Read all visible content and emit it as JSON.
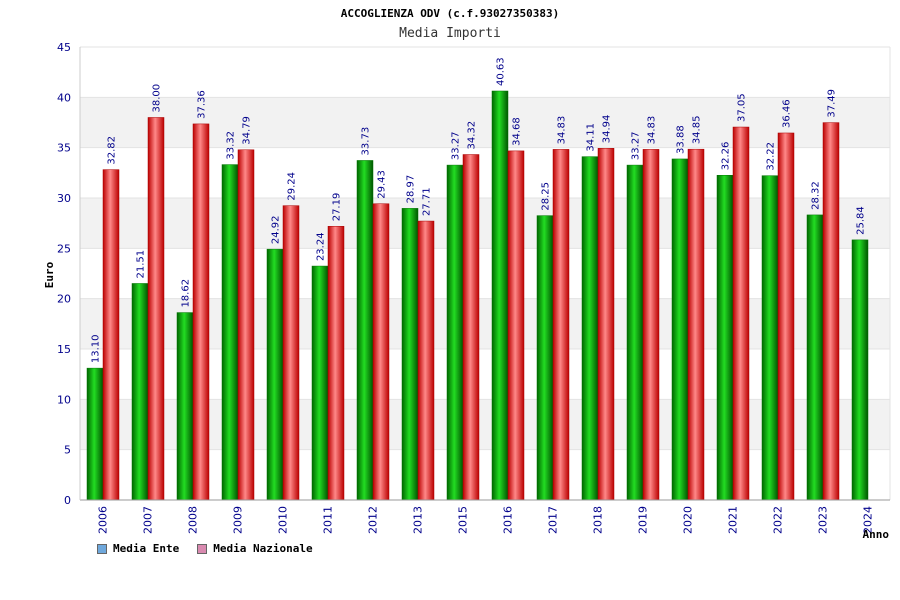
{
  "colors": {
    "ente": "#00bb00",
    "nazionale": "#ee2222",
    "legend_ente": "#6fa8dc",
    "legend_nazionale": "#d98ab0",
    "band": "#f2f2f2"
  },
  "chart_data": {
    "type": "bar",
    "title": "ACCOGLIENZA ODV (c.f.93027350383)",
    "subtitle": "Media Importi",
    "ylabel": "Euro",
    "xlabel": "Anno",
    "ylim": [
      0,
      45
    ],
    "yticks": [
      "0",
      "5",
      "10",
      "15",
      "20",
      "25",
      "30",
      "35",
      "40",
      "45"
    ],
    "grid": true,
    "legend_position": "bottom-left",
    "categories": [
      "2006",
      "2007",
      "2008",
      "2009",
      "2010",
      "2011",
      "2012",
      "2013",
      "2015",
      "2016",
      "2017",
      "2018",
      "2019",
      "2020",
      "2021",
      "2022",
      "2023",
      "2024"
    ],
    "series": [
      {
        "name": "Media Ente",
        "values": [
          13.1,
          21.51,
          18.62,
          33.32,
          24.92,
          23.24,
          33.73,
          28.97,
          33.27,
          40.63,
          28.25,
          34.11,
          33.27,
          33.88,
          32.26,
          32.22,
          28.32,
          25.84
        ],
        "labels": [
          "13.10",
          "21.51",
          "18.62",
          "33.32",
          "24.92",
          "23.24",
          "33.73",
          "28.97",
          "33.27",
          "40.63",
          "28.25",
          "34.11",
          "33.27",
          "33.88",
          "32.26",
          "32.22",
          "28.32",
          "25.84"
        ]
      },
      {
        "name": "Media Nazionale",
        "values": [
          32.82,
          38.0,
          37.36,
          34.79,
          29.24,
          27.19,
          29.43,
          27.71,
          34.32,
          34.68,
          34.83,
          34.94,
          34.83,
          34.85,
          37.05,
          36.46,
          37.49,
          null
        ],
        "labels": [
          "32.82",
          "38.00",
          "37.36",
          "34.79",
          "29.24",
          "27.19",
          "29.43",
          "27.71",
          "34.32",
          "34.68",
          "34.83",
          "34.94",
          "34.83",
          "34.85",
          "37.05",
          "36.46",
          "37.49",
          null
        ]
      }
    ]
  }
}
